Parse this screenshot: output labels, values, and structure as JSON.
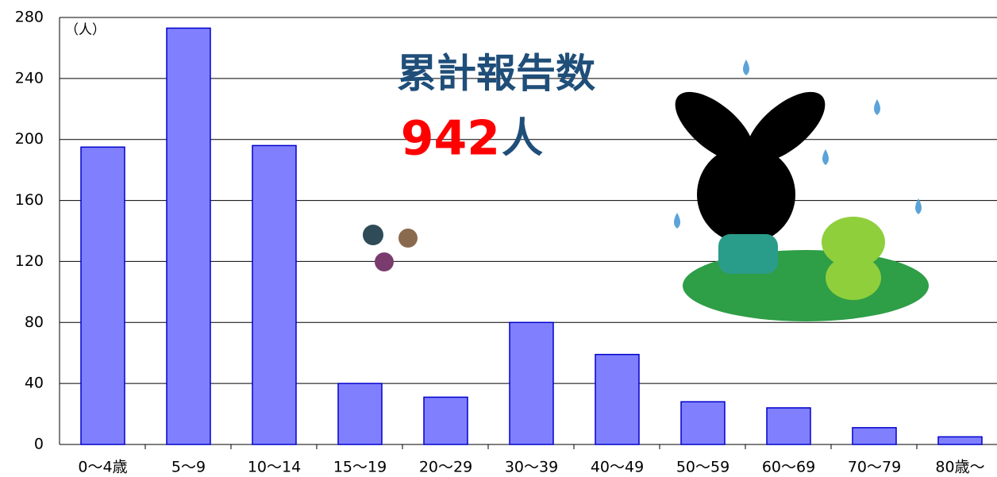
{
  "chart_data": {
    "type": "bar",
    "unit_label": "（人）",
    "total_label": "累計報告数",
    "total_number": "942",
    "total_unit": "人",
    "categories": [
      "0～4歳",
      "5～9",
      "10～14",
      "15～19",
      "20～29",
      "30～39",
      "40～49",
      "50～59",
      "60～69",
      "70～79",
      "80歳～"
    ],
    "values": [
      195,
      273,
      196,
      40,
      31,
      80,
      59,
      28,
      24,
      11,
      5
    ],
    "color": "#8080ff",
    "ylim": [
      0,
      280
    ],
    "yticks": [
      0,
      40,
      80,
      120,
      160,
      200,
      240,
      280
    ],
    "grid": true
  }
}
